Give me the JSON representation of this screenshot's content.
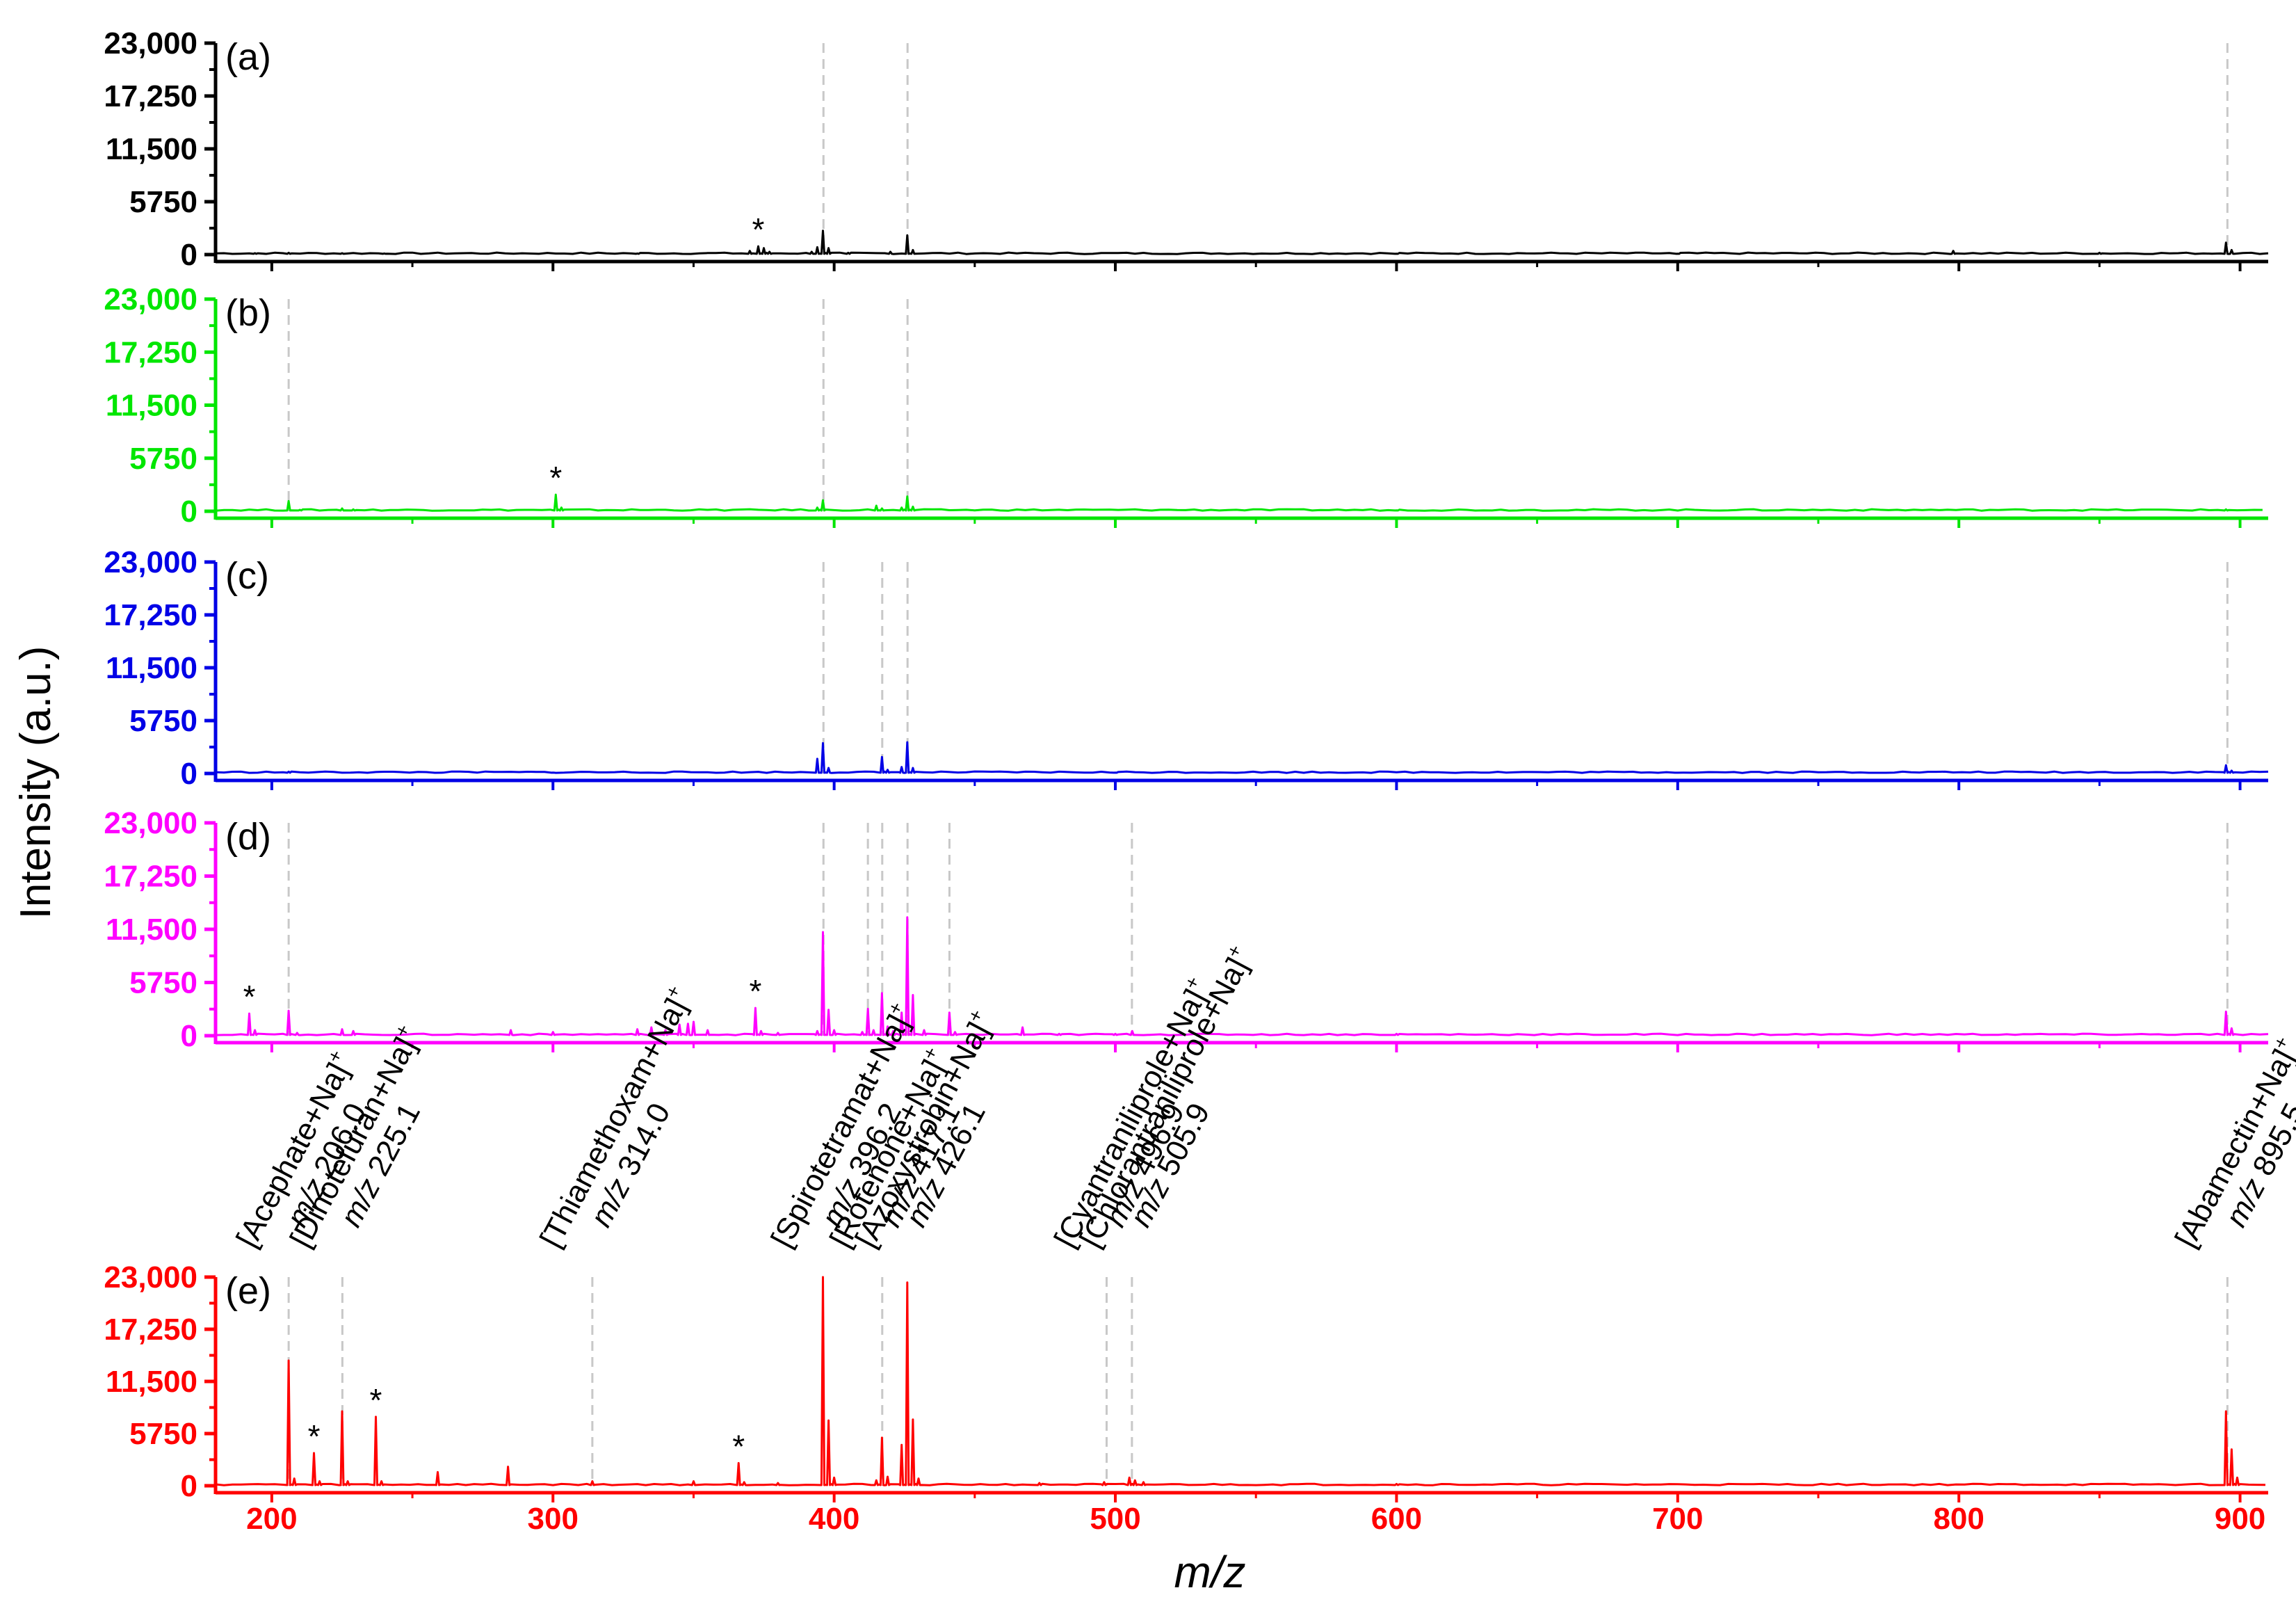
{
  "chart_data": {
    "type": "line",
    "ylabel": "Intensity (a.u.)",
    "xlabel": "m/z",
    "xlim": [
      180,
      910
    ],
    "ylim": [
      0,
      23000
    ],
    "x_ticks": [
      200,
      300,
      400,
      500,
      600,
      700,
      800,
      900
    ],
    "x_tick_labels": [
      "200",
      "300",
      "400",
      "500",
      "600",
      "700",
      "800",
      "900"
    ],
    "y_ticks": [
      0,
      5750,
      11500,
      17250,
      23000
    ],
    "y_tick_labels": [
      "0",
      "5750",
      "11,500",
      "17,250",
      "23,000"
    ],
    "panels": [
      {
        "label": "(a)",
        "color": "#000000",
        "peaks": [
          [
            194,
            150
          ],
          [
            206,
            200
          ],
          [
            225,
            150
          ],
          [
            240,
            120
          ],
          [
            330,
            120
          ],
          [
            370,
            400
          ],
          [
            373,
            900
          ],
          [
            375,
            700
          ],
          [
            377,
            300
          ],
          [
            392,
            300
          ],
          [
            394,
            800
          ],
          [
            396,
            2600
          ],
          [
            398,
            700
          ],
          [
            405,
            200
          ],
          [
            420,
            300
          ],
          [
            426,
            2100
          ],
          [
            428,
            500
          ],
          [
            600,
            100
          ],
          [
            700,
            100
          ],
          [
            798,
            400
          ],
          [
            850,
            200
          ],
          [
            895,
            1300
          ],
          [
            897,
            500
          ]
        ],
        "stars": [
          373
        ],
        "markers": [
          396.2,
          426.1,
          895.5
        ]
      },
      {
        "label": "(b)",
        "color": "#00e600",
        "peaks": [
          [
            206,
            1100
          ],
          [
            210,
            150
          ],
          [
            225,
            300
          ],
          [
            229,
            200
          ],
          [
            301,
            1800
          ],
          [
            303,
            400
          ],
          [
            394,
            400
          ],
          [
            396,
            1200
          ],
          [
            415,
            600
          ],
          [
            417,
            300
          ],
          [
            424,
            400
          ],
          [
            426,
            1600
          ],
          [
            428,
            500
          ],
          [
            600,
            100
          ],
          [
            895,
            200
          ]
        ],
        "stars": [
          301
        ],
        "markers": [
          206.0,
          396.2,
          426.1
        ]
      },
      {
        "label": "(c)",
        "color": "#0000e6",
        "peaks": [
          [
            206,
            200
          ],
          [
            300,
            100
          ],
          [
            394,
            1600
          ],
          [
            396,
            3300
          ],
          [
            398,
            600
          ],
          [
            417,
            1800
          ],
          [
            419,
            400
          ],
          [
            424,
            700
          ],
          [
            426,
            3400
          ],
          [
            428,
            600
          ],
          [
            500,
            100
          ],
          [
            895,
            900
          ],
          [
            897,
            300
          ]
        ],
        "stars": [],
        "markers": [
          396.2,
          417.1,
          426.1,
          895.5
        ]
      },
      {
        "label": "(d)",
        "color": "#ff00ff",
        "peaks": [
          [
            192,
            2400
          ],
          [
            194,
            600
          ],
          [
            206,
            2700
          ],
          [
            209,
            300
          ],
          [
            225,
            700
          ],
          [
            229,
            500
          ],
          [
            285,
            600
          ],
          [
            300,
            400
          ],
          [
            330,
            700
          ],
          [
            335,
            900
          ],
          [
            340,
            600
          ],
          [
            345,
            1200
          ],
          [
            348,
            1300
          ],
          [
            350,
            1500
          ],
          [
            355,
            600
          ],
          [
            372,
            3000
          ],
          [
            374,
            500
          ],
          [
            380,
            300
          ],
          [
            394,
            500
          ],
          [
            396,
            11200
          ],
          [
            398,
            2800
          ],
          [
            400,
            600
          ],
          [
            410,
            400
          ],
          [
            412,
            2900
          ],
          [
            414,
            600
          ],
          [
            417,
            4600
          ],
          [
            419,
            1000
          ],
          [
            421,
            500
          ],
          [
            424,
            2500
          ],
          [
            426,
            12800
          ],
          [
            428,
            4400
          ],
          [
            432,
            600
          ],
          [
            441,
            2500
          ],
          [
            443,
            400
          ],
          [
            467,
            900
          ],
          [
            480,
            200
          ],
          [
            500,
            200
          ],
          [
            506,
            500
          ],
          [
            600,
            200
          ],
          [
            895,
            2600
          ],
          [
            897,
            800
          ]
        ],
        "stars": [
          192,
          372
        ],
        "markers": [
          206.0,
          396.2,
          412.0,
          417.1,
          426.1,
          441.0,
          505.9,
          895.5
        ]
      },
      {
        "label": "(e)",
        "color": "#ff0000",
        "peaks": [
          [
            206,
            13800
          ],
          [
            208,
            800
          ],
          [
            215,
            3600
          ],
          [
            217,
            500
          ],
          [
            225,
            8200
          ],
          [
            227,
            500
          ],
          [
            237,
            7600
          ],
          [
            239,
            500
          ],
          [
            259,
            1500
          ],
          [
            284,
            2100
          ],
          [
            314,
            500
          ],
          [
            350,
            500
          ],
          [
            366,
            2500
          ],
          [
            368,
            400
          ],
          [
            380,
            300
          ],
          [
            396,
            23000
          ],
          [
            398,
            7200
          ],
          [
            400,
            900
          ],
          [
            415,
            600
          ],
          [
            417,
            5300
          ],
          [
            419,
            1000
          ],
          [
            424,
            4500
          ],
          [
            426,
            22400
          ],
          [
            428,
            7300
          ],
          [
            430,
            800
          ],
          [
            473,
            300
          ],
          [
            496,
            400
          ],
          [
            505,
            900
          ],
          [
            507,
            600
          ],
          [
            510,
            400
          ],
          [
            600,
            200
          ],
          [
            895,
            8200
          ],
          [
            897,
            4000
          ],
          [
            899,
            900
          ]
        ],
        "stars": [
          215,
          237,
          366
        ],
        "markers": [
          206.0,
          225.1,
          314.0,
          417.1,
          496.9,
          505.9,
          895.5
        ]
      }
    ],
    "annotations": [
      {
        "name": "acephate",
        "mz": 206.0,
        "compound": "[Acephate+Na]",
        "value": "206.0"
      },
      {
        "name": "dinotefuran",
        "mz": 225.1,
        "compound": "[Dinotefuran+Na]",
        "value": "225.1"
      },
      {
        "name": "thiamethoxam",
        "mz": 314.0,
        "compound": "[Thiamethoxam+Na]",
        "value": "314.0"
      },
      {
        "name": "spirotetramat",
        "mz": 396.2,
        "compound": "[Spirotetramat+Na]",
        "value": "396.2"
      },
      {
        "name": "rotenone",
        "mz": 417.1,
        "compound": "[Rotenone+Na]",
        "value": "417.1"
      },
      {
        "name": "azoxystrobin",
        "mz": 426.1,
        "compound": "[Azoxystrobin+Na]",
        "value": "426.1"
      },
      {
        "name": "cyantraniliprole",
        "mz": 496.9,
        "compound": "[Cyantraniliprole+Na]",
        "value": "496.9"
      },
      {
        "name": "chlorantraniliprole",
        "mz": 505.9,
        "compound": "[Chlorantraniliprole+Na]",
        "value": "505.9"
      },
      {
        "name": "abamectin",
        "mz": 895.5,
        "compound": "[Abamectin+Na]",
        "value": "895.5"
      }
    ],
    "superscript": "+",
    "mz_prefix": "m/z",
    "star_symbol": "*"
  }
}
